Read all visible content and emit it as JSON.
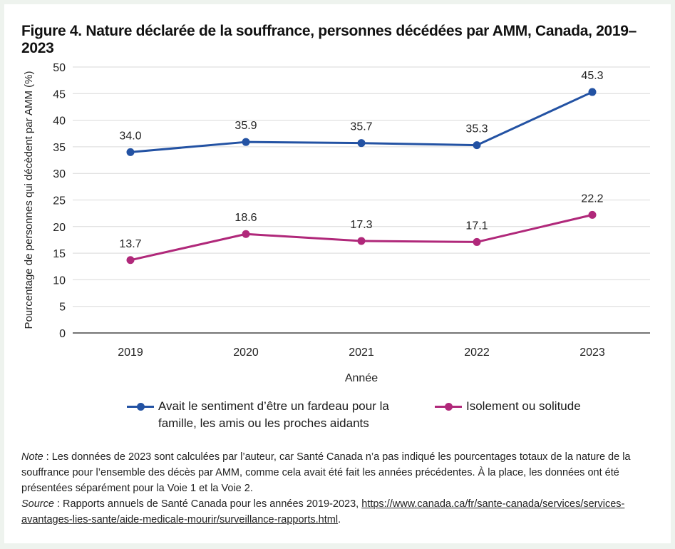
{
  "title": "Figure 4. Nature déclarée de la souffrance, personnes décédées par AMM, Canada, 2019–2023",
  "colors": {
    "series1": "#2352a3",
    "series2": "#b0287a",
    "grid": "#d9d9d9",
    "axis": "#000000"
  },
  "chart_data": {
    "type": "line",
    "title": "Figure 4. Nature déclarée de la souffrance, personnes décédées par AMM, Canada, 2019–2023",
    "xlabel": "Année",
    "ylabel": "Pourcentage de personnes qui décèdent par AMM (%)",
    "ylim": [
      0,
      50
    ],
    "yticks": [
      0,
      5,
      10,
      15,
      20,
      25,
      30,
      35,
      40,
      45,
      50
    ],
    "categories": [
      "2019",
      "2020",
      "2021",
      "2022",
      "2023"
    ],
    "grid": true,
    "legend_position": "bottom",
    "series": [
      {
        "name": "Avait le sentiment d’être un fardeau pour la famille, les amis ou les proches aidants",
        "values": [
          34.0,
          35.9,
          35.7,
          35.3,
          45.3
        ],
        "labels": [
          "34.0",
          "35.9",
          "35.7",
          "35.3",
          "45.3"
        ],
        "color": "#2352a3"
      },
      {
        "name": "Isolement ou solitude",
        "values": [
          13.7,
          18.6,
          17.3,
          17.1,
          22.2
        ],
        "labels": [
          "13.7",
          "18.6",
          "17.3",
          "17.1",
          "22.2"
        ],
        "color": "#b0287a"
      }
    ]
  },
  "notes": {
    "note_label": "Note",
    "note_text": " : Les données de 2023 sont calculées par l’auteur, car Santé Canada n’a pas indiqué les pourcentages totaux de la nature de la souffrance pour l’ensemble des décès par AMM, comme cela avait été fait les années précédentes. À la place, les données ont été présentées séparément pour la Voie 1 et la Voie 2.",
    "source_label": "Source",
    "source_text": " : Rapports annuels de Santé Canada pour les années 2019-2023, ",
    "source_url": "https://www.canada.ca/fr/sante-canada/services/services-avantages-lies-sante/aide-medicale-mourir/surveillance-rapports.html",
    "source_end": "."
  }
}
